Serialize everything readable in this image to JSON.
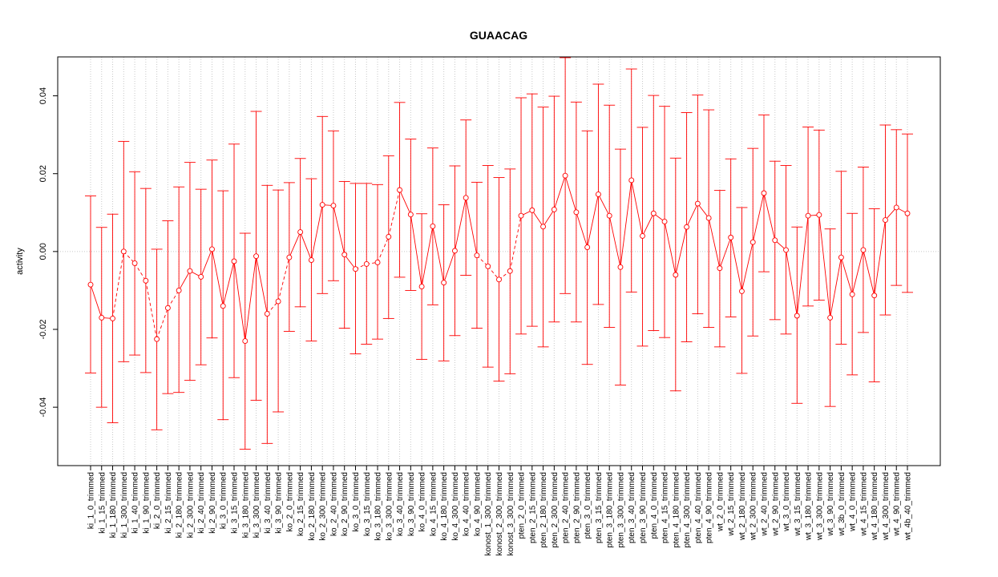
{
  "chart_data": {
    "type": "line",
    "title": "GUAACAG",
    "xlabel": "",
    "ylabel": "activity",
    "ylim": [
      -0.055,
      0.05
    ],
    "yticks": [
      -0.04,
      -0.02,
      0.0,
      0.02,
      0.04
    ],
    "ytick_labels": [
      "-0.04",
      "-0.02",
      "0.00",
      "0.02",
      "0.04"
    ],
    "grid": true,
    "reference_line": 0,
    "series_color": "#ff0000",
    "grid_color": "#c8c8c8",
    "categories": [
      "ki_1_0_trimmed",
      "ki_1_15_trimmed",
      "ki_1_180_trimmed",
      "ki_1_300_trimmed",
      "ki_1_40_trimmed",
      "ki_1_90_trimmed",
      "ki_2_0_trimmed",
      "ki_2_15_trimmed",
      "ki_2_180_trimmed",
      "ki_2_300_trimmed",
      "ki_2_40_trimmed",
      "ki_2_90_trimmed",
      "ki_3_0_trimmed",
      "ki_3_15_trimmed",
      "ki_3_180_trimmed",
      "ki_3_300_trimmed",
      "ki_3_40_trimmed",
      "ki_3_90_trimmed",
      "ko_2_0_trimmed",
      "ko_2_15_trimmed",
      "ko_2_180_trimmed",
      "ko_2_300_trimmed",
      "ko_2_40_trimmed",
      "ko_2_90_trimmed",
      "ko_3_0_trimmed",
      "ko_3_15_trimmed",
      "ko_3_180_trimmed",
      "ko_3_300_trimmed",
      "ko_3_40_trimmed",
      "ko_3_90_trimmed",
      "ko_4_0_trimmed",
      "ko_4_15_trimmed",
      "ko_4_180_trimmed",
      "ko_4_300_trimmed",
      "ko_4_40_trimmed",
      "ko_4_90_trimmed",
      "konost_1_300_trimmed",
      "konost_2_300_trimmed",
      "konost_3_300_trimmed",
      "pten_2_0_trimmed",
      "pten_2_15_trimmed",
      "pten_2_180_trimmed",
      "pten_2_300_trimmed",
      "pten_2_40_trimmed",
      "pten_2_90_trimmed",
      "pten_3_0_trimmed",
      "pten_3_15_trimmed",
      "pten_3_180_trimmed",
      "pten_3_300_trimmed",
      "pten_3_40_trimmed",
      "pten_3_90_trimmed",
      "pten_4_0_trimmed",
      "pten_4_15_trimmed",
      "pten_4_180_trimmed",
      "pten_4_300_trimmed",
      "pten_4_40_trimmed",
      "pten_4_90_trimmed",
      "wt_2_0_trimmed",
      "wt_2_15_trimmed",
      "wt_2_180_trimmed",
      "wt_2_300_trimmed",
      "wt_2_40_trimmed",
      "wt_2_90_trimmed",
      "wt_3_0_trimmed",
      "wt_3_15_trimmed",
      "wt_3_180_trimmed",
      "wt_3_300_trimmed",
      "wt_3_90_trimmed",
      "wt_3b_0_trimmed",
      "wt_4_0_trimmed",
      "wt_4_15_trimmed",
      "wt_4_180_trimmed",
      "wt_4_300_trimmed",
      "wt_4_90_trimmed",
      "wt_4b_40_trimmed"
    ],
    "values": [
      -0.0085,
      -0.017,
      -0.0172,
      0.0,
      -0.003,
      -0.0075,
      -0.0225,
      -0.0145,
      -0.01,
      -0.005,
      -0.0065,
      0.0006,
      -0.014,
      -0.0025,
      -0.023,
      -0.0012,
      -0.016,
      -0.0128,
      -0.0015,
      0.005,
      -0.0022,
      0.012,
      0.0118,
      -0.0008,
      -0.0045,
      -0.0032,
      -0.0028,
      0.0038,
      0.0158,
      0.0095,
      -0.009,
      0.0065,
      -0.008,
      0.0002,
      0.0138,
      -0.001,
      -0.0038,
      -0.0072,
      -0.005,
      0.0092,
      0.0106,
      0.0064,
      0.0108,
      0.0195,
      0.0101,
      0.0011,
      0.0147,
      0.0092,
      -0.004,
      0.0183,
      0.004,
      0.0098,
      0.0077,
      -0.006,
      0.0063,
      0.0123,
      0.0086,
      -0.0043,
      0.0036,
      -0.0102,
      0.0024,
      0.015,
      0.0029,
      0.0004,
      -0.0165,
      0.0092,
      0.0094,
      -0.017,
      -0.0015,
      -0.011,
      0.0004,
      -0.0113,
      0.0081,
      0.0113,
      0.0098
    ],
    "upper": [
      0.0143,
      0.0062,
      0.0096,
      0.0283,
      0.0205,
      0.0162,
      0.0006,
      0.0079,
      0.0166,
      0.0229,
      0.016,
      0.0235,
      0.0156,
      0.0276,
      0.0047,
      0.036,
      0.017,
      0.0158,
      0.0177,
      0.0239,
      0.0187,
      0.0347,
      0.031,
      0.018,
      0.0175,
      0.0175,
      0.0172,
      0.0246,
      0.0383,
      0.0289,
      0.0097,
      0.0266,
      0.012,
      0.022,
      0.0338,
      0.0178,
      0.0221,
      0.019,
      0.0212,
      0.0395,
      0.0405,
      0.0371,
      0.0399,
      0.0498,
      0.0384,
      0.031,
      0.043,
      0.0376,
      0.0263,
      0.0469,
      0.0319,
      0.0401,
      0.0373,
      0.024,
      0.0357,
      0.0402,
      0.0364,
      0.0157,
      0.0238,
      0.0113,
      0.0265,
      0.0351,
      0.0232,
      0.0221,
      0.0063,
      0.032,
      0.0312,
      0.0058,
      0.0206,
      0.0098,
      0.0217,
      0.011,
      0.0325,
      0.0313,
      0.0302
    ],
    "lower": [
      -0.0312,
      -0.04,
      -0.044,
      -0.0283,
      -0.0266,
      -0.0311,
      -0.0458,
      -0.0365,
      -0.0362,
      -0.0331,
      -0.0291,
      -0.0222,
      -0.0432,
      -0.0324,
      -0.0508,
      -0.0382,
      -0.0493,
      -0.0412,
      -0.0205,
      -0.0142,
      -0.023,
      -0.0108,
      -0.0075,
      -0.0197,
      -0.0263,
      -0.0238,
      -0.0225,
      -0.0172,
      -0.0066,
      -0.01,
      -0.0277,
      -0.0137,
      -0.0281,
      -0.0216,
      -0.0061,
      -0.0197,
      -0.0297,
      -0.0333,
      -0.0314,
      -0.0212,
      -0.0192,
      -0.0245,
      -0.0181,
      -0.0108,
      -0.0181,
      -0.029,
      -0.0136,
      -0.0195,
      -0.0343,
      -0.0104,
      -0.0243,
      -0.0203,
      -0.0221,
      -0.0358,
      -0.0232,
      -0.016,
      -0.0195,
      -0.0245,
      -0.0168,
      -0.0313,
      -0.0217,
      -0.0052,
      -0.0175,
      -0.0212,
      -0.039,
      -0.014,
      -0.0125,
      -0.0398,
      -0.0238,
      -0.0317,
      -0.0208,
      -0.0335,
      -0.0163,
      -0.0087,
      -0.0105
    ],
    "solid_segments": [
      [
        0,
        2
      ],
      [
        8,
        11
      ],
      [
        11,
        14
      ],
      [
        14,
        16
      ],
      [
        18,
        21
      ],
      [
        21,
        24
      ],
      [
        28,
        30
      ],
      [
        30,
        33
      ],
      [
        33,
        35
      ],
      [
        39,
        42
      ],
      [
        42,
        45
      ],
      [
        45,
        48
      ],
      [
        48,
        51
      ],
      [
        51,
        54
      ],
      [
        54,
        57
      ],
      [
        57,
        60
      ],
      [
        60,
        63
      ],
      [
        63,
        66
      ],
      [
        66,
        69
      ],
      [
        69,
        72
      ],
      [
        72,
        74
      ]
    ]
  }
}
